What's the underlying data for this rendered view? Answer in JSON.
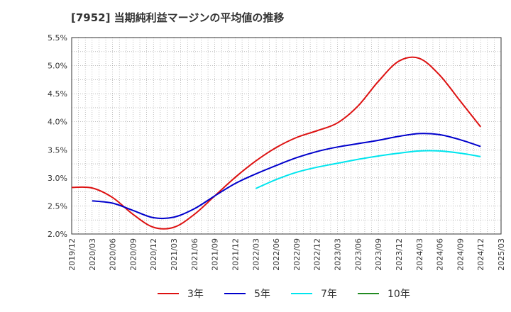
{
  "chart_data": {
    "type": "line",
    "title": "[7952]  当期純利益マージンの平均値の推移",
    "xlabel": "",
    "ylabel": "",
    "ylim": [
      0.02,
      0.055
    ],
    "yticks": [
      "5.5%",
      "5.0%",
      "4.5%",
      "4.0%",
      "3.5%",
      "3.0%",
      "2.5%",
      "2.0%"
    ],
    "ytick_values": [
      0.055,
      0.05,
      0.045,
      0.04,
      0.035,
      0.03,
      0.025,
      0.02
    ],
    "xticks": [
      "2019/12",
      "2020/03",
      "2020/06",
      "2020/09",
      "2020/12",
      "2021/03",
      "2021/06",
      "2021/09",
      "2021/12",
      "2022/03",
      "2022/06",
      "2022/09",
      "2022/12",
      "2023/03",
      "2023/06",
      "2023/09",
      "2023/12",
      "2024/03",
      "2024/06",
      "2024/09",
      "2024/12",
      "2025/03"
    ],
    "grid": true,
    "legend_position": "bottom",
    "series": [
      {
        "name": "3年",
        "color": "#dd1111",
        "x": [
          "2019/12",
          "2020/03",
          "2020/06",
          "2020/09",
          "2020/12",
          "2021/03",
          "2021/06",
          "2021/09",
          "2021/12",
          "2022/03",
          "2022/06",
          "2022/09",
          "2022/12",
          "2023/03",
          "2023/06",
          "2023/09",
          "2023/12",
          "2024/03",
          "2024/06",
          "2024/09",
          "2024/12"
        ],
        "values": [
          0.0283,
          0.0282,
          0.0265,
          0.0235,
          0.0212,
          0.0212,
          0.0235,
          0.0268,
          0.0301,
          0.033,
          0.0354,
          0.0372,
          0.0384,
          0.0398,
          0.0428,
          0.0472,
          0.0508,
          0.0513,
          0.0483,
          0.0437,
          0.0391
        ]
      },
      {
        "name": "5年",
        "color": "#0000cc",
        "x": [
          "2020/03",
          "2020/06",
          "2020/09",
          "2020/12",
          "2021/03",
          "2021/06",
          "2021/09",
          "2021/12",
          "2022/03",
          "2022/06",
          "2022/09",
          "2022/12",
          "2023/03",
          "2023/06",
          "2023/09",
          "2023/12",
          "2024/03",
          "2024/06",
          "2024/09",
          "2024/12"
        ],
        "values": [
          0.0259,
          0.0255,
          0.0242,
          0.0229,
          0.023,
          0.0245,
          0.0268,
          0.029,
          0.0307,
          0.0322,
          0.0336,
          0.0347,
          0.0355,
          0.0361,
          0.0367,
          0.0374,
          0.0379,
          0.0377,
          0.0368,
          0.0356
        ]
      },
      {
        "name": "7年",
        "color": "#00e5ee",
        "x": [
          "2022/03",
          "2022/06",
          "2022/09",
          "2022/12",
          "2023/03",
          "2023/06",
          "2023/09",
          "2023/12",
          "2024/03",
          "2024/06",
          "2024/09",
          "2024/12"
        ],
        "values": [
          0.0281,
          0.0297,
          0.031,
          0.0319,
          0.0326,
          0.0333,
          0.0339,
          0.0344,
          0.0348,
          0.0348,
          0.0344,
          0.0338
        ]
      },
      {
        "name": "10年",
        "color": "#228b22",
        "x": [],
        "values": []
      }
    ]
  }
}
